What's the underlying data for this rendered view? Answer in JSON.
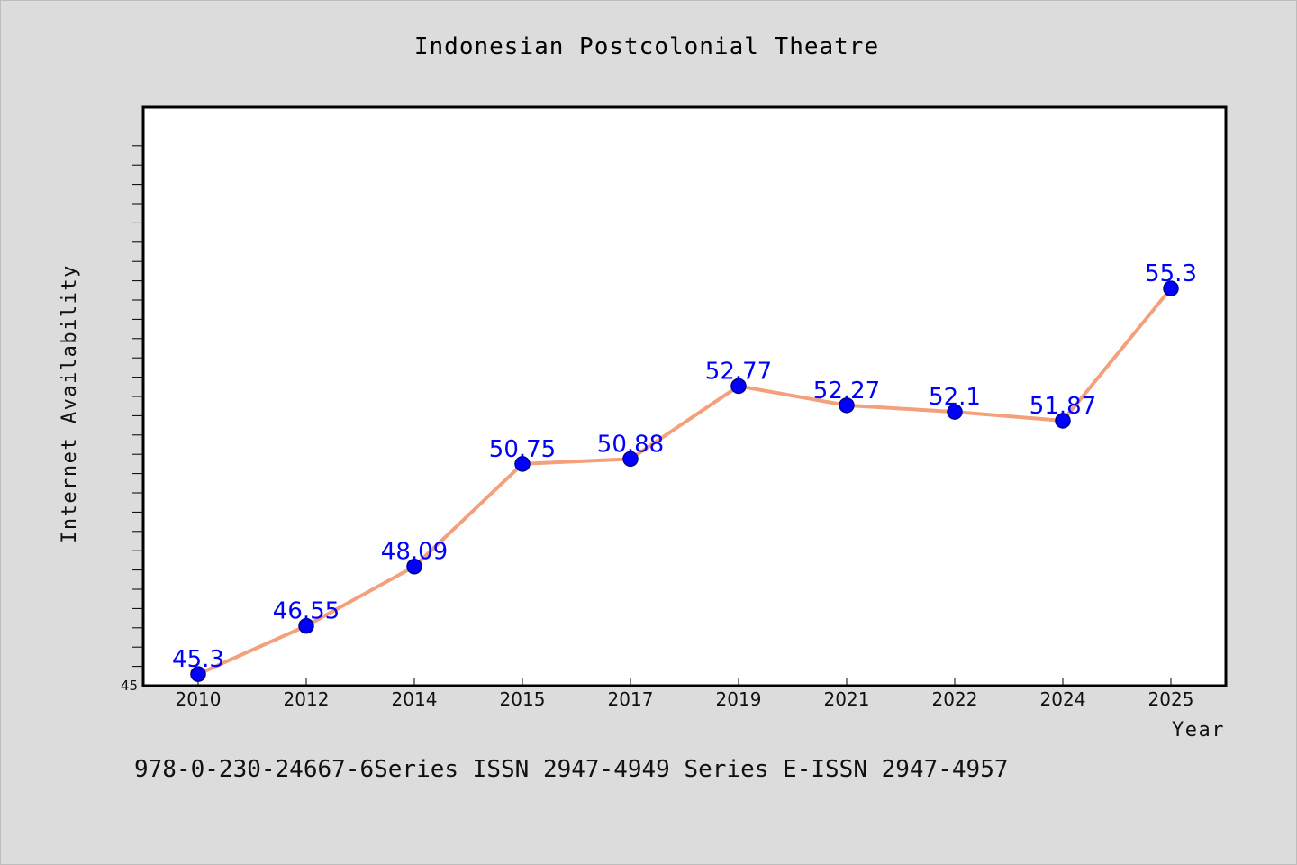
{
  "chart_data": {
    "type": "line",
    "title": "Indonesian Postcolonial Theatre",
    "xlabel": "Year",
    "ylabel": "Internet Availability",
    "categories": [
      "2010",
      "2012",
      "2014",
      "2015",
      "2017",
      "2019",
      "2021",
      "2022",
      "2024",
      "2025"
    ],
    "series": [
      {
        "values": [
          45.3,
          46.55,
          48.09,
          50.75,
          50.88,
          52.77,
          52.27,
          52.1,
          51.87,
          55.3
        ],
        "data_labels": [
          "45.3",
          "46.55",
          "48.09",
          "50.75",
          "50.88",
          "52.77",
          "52.27",
          "52.1",
          "51.87",
          "55.3"
        ]
      }
    ],
    "ylim": [
      45,
      60
    ],
    "y_tick_labels": [
      "45"
    ],
    "grid": false,
    "colors": {
      "line": "#f4a07c",
      "marker": "#0000ff",
      "data_label": "#0000ff",
      "plot_background": "#ffffff",
      "page_background": "#dcdcdc"
    }
  },
  "footer": {
    "text": "978-0-230-24667-6Series ISSN 2947-4949 Series E-ISSN 2947-4957"
  }
}
